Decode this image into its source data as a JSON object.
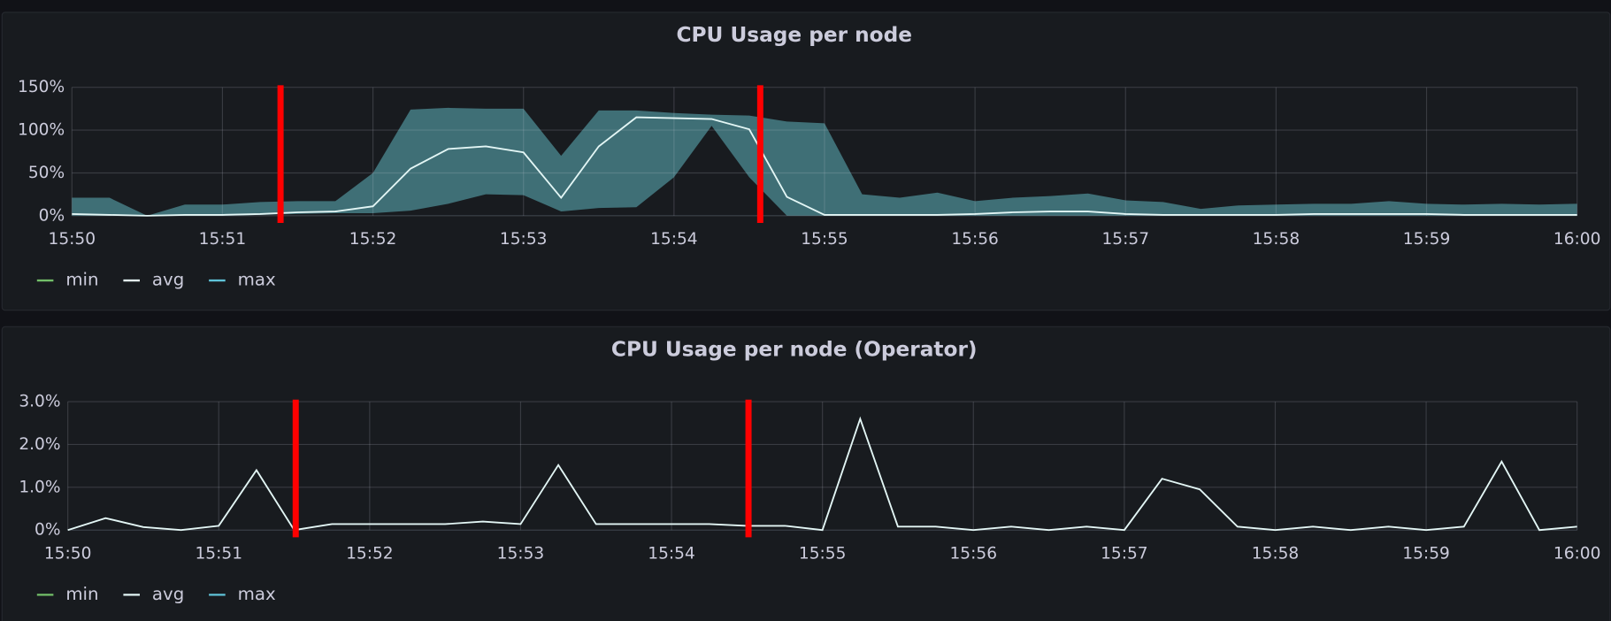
{
  "chart_data": [
    {
      "type": "line",
      "title": "CPU Usage per node",
      "x": [
        0,
        0.25,
        0.5,
        0.75,
        1,
        1.25,
        1.5,
        1.75,
        2,
        2.25,
        2.5,
        2.75,
        3,
        3.25,
        3.5,
        3.75,
        4,
        4.25,
        4.5,
        4.75,
        5,
        5.25,
        5.5,
        5.75,
        6,
        6.25,
        6.5,
        6.75,
        7,
        7.25,
        7.5,
        7.75,
        8,
        8.25,
        8.5,
        8.75,
        9,
        9.25,
        9.5,
        9.75,
        10
      ],
      "series": [
        {
          "name": "min",
          "color": "#73bf69",
          "values": [
            0,
            0,
            0,
            0,
            0,
            1,
            2,
            3,
            3,
            6,
            14,
            25,
            24,
            5,
            9,
            10,
            45,
            105,
            45,
            0,
            0,
            0,
            0,
            0,
            0,
            0,
            0,
            0,
            0,
            0,
            0,
            0,
            0,
            0,
            0,
            0,
            0,
            0,
            0,
            0,
            0
          ]
        },
        {
          "name": "avg",
          "color": "#e3f6f5",
          "values": [
            2,
            1,
            0,
            1,
            1,
            2,
            4,
            5,
            11,
            55,
            78,
            81,
            74,
            21,
            81,
            115,
            114,
            113,
            101,
            22,
            1,
            1,
            1,
            1,
            2,
            4,
            5,
            5,
            2,
            1,
            1,
            1,
            1,
            2,
            2,
            2,
            2,
            1,
            1,
            1,
            1
          ]
        },
        {
          "name": "max",
          "color": "#5fc3d8",
          "values": [
            21,
            21,
            0,
            13,
            13,
            16,
            17,
            17,
            50,
            124,
            126,
            125,
            125,
            70,
            123,
            123,
            120,
            118,
            117,
            110,
            108,
            25,
            21,
            27,
            17,
            21,
            23,
            26,
            18,
            16,
            8,
            12,
            13,
            14,
            14,
            17,
            14,
            13,
            14,
            13,
            14
          ]
        }
      ],
      "band_color": "#3f6f76",
      "xlim": [
        0,
        10
      ],
      "xticks": [
        {
          "value": 0,
          "label": "15:50"
        },
        {
          "value": 1,
          "label": "15:51"
        },
        {
          "value": 2,
          "label": "15:52"
        },
        {
          "value": 3,
          "label": "15:53"
        },
        {
          "value": 4,
          "label": "15:54"
        },
        {
          "value": 5,
          "label": "15:55"
        },
        {
          "value": 6,
          "label": "15:56"
        },
        {
          "value": 7,
          "label": "15:57"
        },
        {
          "value": 8,
          "label": "15:58"
        },
        {
          "value": 9,
          "label": "15:59"
        },
        {
          "value": 10,
          "label": "16:00"
        }
      ],
      "ylim": [
        0,
        150
      ],
      "yticks": [
        {
          "value": 0,
          "label": "0%"
        },
        {
          "value": 50,
          "label": "50%"
        },
        {
          "value": 100,
          "label": "100%"
        },
        {
          "value": 150,
          "label": "150%"
        }
      ],
      "vlines": [
        1.386,
        4.573
      ],
      "vline_color": "#ff0000",
      "grid": true,
      "legend": "bottom-left"
    },
    {
      "type": "line",
      "title": "CPU Usage per node (Operator)",
      "x": [
        0,
        0.25,
        0.5,
        0.75,
        1,
        1.25,
        1.5,
        1.75,
        2,
        2.25,
        2.5,
        2.75,
        3,
        3.25,
        3.5,
        3.75,
        4,
        4.25,
        4.5,
        4.75,
        5,
        5.25,
        5.5,
        5.75,
        6,
        6.25,
        6.5,
        6.75,
        7,
        7.25,
        7.5,
        7.75,
        8,
        8.25,
        8.5,
        8.75,
        9,
        9.25,
        9.5,
        9.75,
        10
      ],
      "series": [
        {
          "name": "min",
          "color": "#73bf69",
          "values": [
            0,
            0.28,
            0.07,
            0,
            0.1,
            1.4,
            0,
            0.14,
            0.14,
            0.14,
            0.14,
            0.2,
            0.14,
            1.52,
            0.14,
            0.14,
            0.14,
            0.14,
            0.1,
            0.1,
            0,
            2.6,
            0.08,
            0.08,
            0,
            0.08,
            0,
            0.08,
            0,
            1.2,
            0.95,
            0.08,
            0,
            0.08,
            0,
            0.08,
            0,
            0.08,
            1.6,
            0,
            0.08
          ]
        },
        {
          "name": "avg",
          "color": "#e3f6f5",
          "values": [
            0,
            0.28,
            0.07,
            0,
            0.1,
            1.4,
            0,
            0.14,
            0.14,
            0.14,
            0.14,
            0.2,
            0.14,
            1.52,
            0.14,
            0.14,
            0.14,
            0.14,
            0.1,
            0.1,
            0,
            2.6,
            0.08,
            0.08,
            0,
            0.08,
            0,
            0.08,
            0,
            1.2,
            0.95,
            0.08,
            0,
            0.08,
            0,
            0.08,
            0,
            0.08,
            1.6,
            0,
            0.08
          ]
        },
        {
          "name": "max",
          "color": "#5fc3d8",
          "values": [
            0,
            0.28,
            0.07,
            0,
            0.1,
            1.4,
            0,
            0.14,
            0.14,
            0.14,
            0.14,
            0.2,
            0.14,
            1.52,
            0.14,
            0.14,
            0.14,
            0.14,
            0.1,
            0.1,
            0,
            2.6,
            0.08,
            0.08,
            0,
            0.08,
            0,
            0.08,
            0,
            1.2,
            0.95,
            0.08,
            0,
            0.08,
            0,
            0.08,
            0,
            0.08,
            1.6,
            0,
            0.08
          ]
        }
      ],
      "band_color": "#3f6f76",
      "xlim": [
        0,
        10
      ],
      "xticks": [
        {
          "value": 0,
          "label": "15:50"
        },
        {
          "value": 1,
          "label": "15:51"
        },
        {
          "value": 2,
          "label": "15:52"
        },
        {
          "value": 3,
          "label": "15:53"
        },
        {
          "value": 4,
          "label": "15:54"
        },
        {
          "value": 5,
          "label": "15:55"
        },
        {
          "value": 6,
          "label": "15:56"
        },
        {
          "value": 7,
          "label": "15:57"
        },
        {
          "value": 8,
          "label": "15:58"
        },
        {
          "value": 9,
          "label": "15:59"
        },
        {
          "value": 10,
          "label": "16:00"
        }
      ],
      "ylim": [
        0,
        3
      ],
      "yticks": [
        {
          "value": 0,
          "label": "0%"
        },
        {
          "value": 1,
          "label": "1.0%"
        },
        {
          "value": 2,
          "label": "2.0%"
        },
        {
          "value": 3,
          "label": "3.0%"
        }
      ],
      "vlines": [
        1.51,
        4.51
      ],
      "vline_color": "#ff0000",
      "grid": true,
      "legend": "bottom-left"
    }
  ]
}
